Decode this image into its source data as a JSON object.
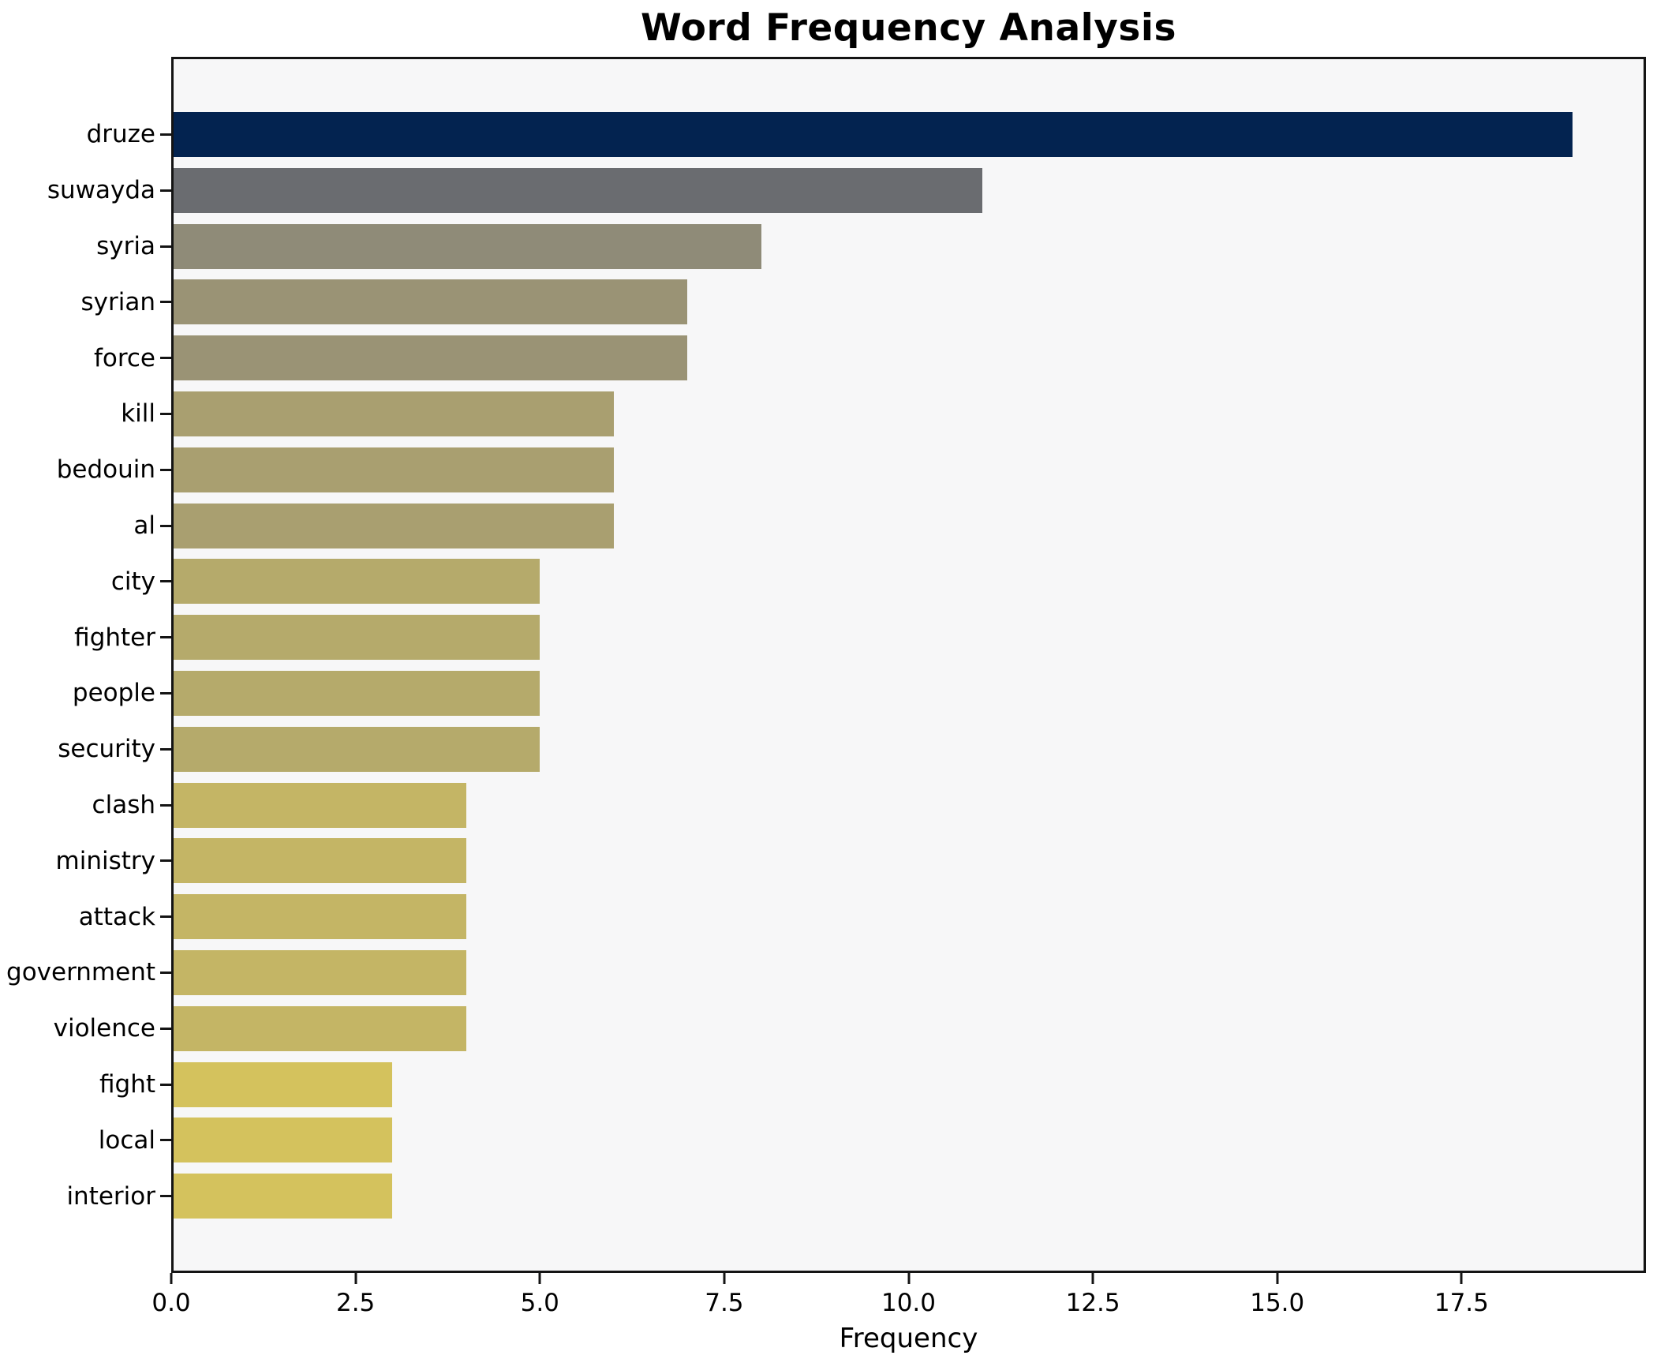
{
  "title": "Word Frequency Analysis",
  "chart_data": {
    "type": "bar",
    "orientation": "horizontal",
    "title": "Word Frequency Analysis",
    "xlabel": "Frequency",
    "ylabel": "",
    "categories": [
      "druze",
      "suwayda",
      "syria",
      "syrian",
      "force",
      "kill",
      "bedouin",
      "al",
      "city",
      "fighter",
      "people",
      "security",
      "clash",
      "ministry",
      "attack",
      "government",
      "violence",
      "fight",
      "local",
      "interior"
    ],
    "values": [
      19,
      11,
      8,
      7,
      7,
      6,
      6,
      6,
      5,
      5,
      5,
      5,
      4,
      4,
      4,
      4,
      4,
      3,
      3,
      3
    ],
    "bar_colors": [
      "#032350",
      "#6a6c70",
      "#8f8b78",
      "#9a9375",
      "#9a9375",
      "#a99f70",
      "#a99f70",
      "#a99f70",
      "#b5aa6b",
      "#b5aa6b",
      "#b5aa6b",
      "#b5aa6b",
      "#c4b565",
      "#c4b565",
      "#c4b565",
      "#c4b565",
      "#c4b565",
      "#d4c25d",
      "#d4c25d",
      "#d4c25d"
    ],
    "xlim": [
      0,
      20
    ],
    "xticks": [
      "0.0",
      "2.5",
      "5.0",
      "7.5",
      "10.0",
      "12.5",
      "15.0",
      "17.5"
    ],
    "xtick_values": [
      0,
      2.5,
      5,
      7.5,
      10,
      12.5,
      15,
      17.5
    ],
    "grid": false,
    "legend": "none",
    "plot_bg": "#f7f7f8",
    "figure_bg": "#ffffff",
    "spine_color": "#141414",
    "text_color": "#000000",
    "bars_inverted_y": true
  }
}
